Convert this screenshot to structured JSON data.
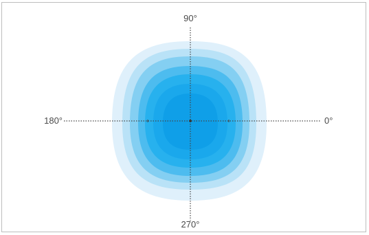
{
  "labels": {
    "top": "90°",
    "right": "0°",
    "bottom": "270°",
    "left": "180°"
  },
  "colors": {
    "frame_border": "#bdbdbd",
    "axis_line": "#444444",
    "label_text": "#4a4a4a",
    "zones": [
      "#dff0fb",
      "#b9e2f7",
      "#84cff2",
      "#4dbcef",
      "#27b1ee",
      "#1aa8ec",
      "#0f9fe8"
    ]
  }
}
